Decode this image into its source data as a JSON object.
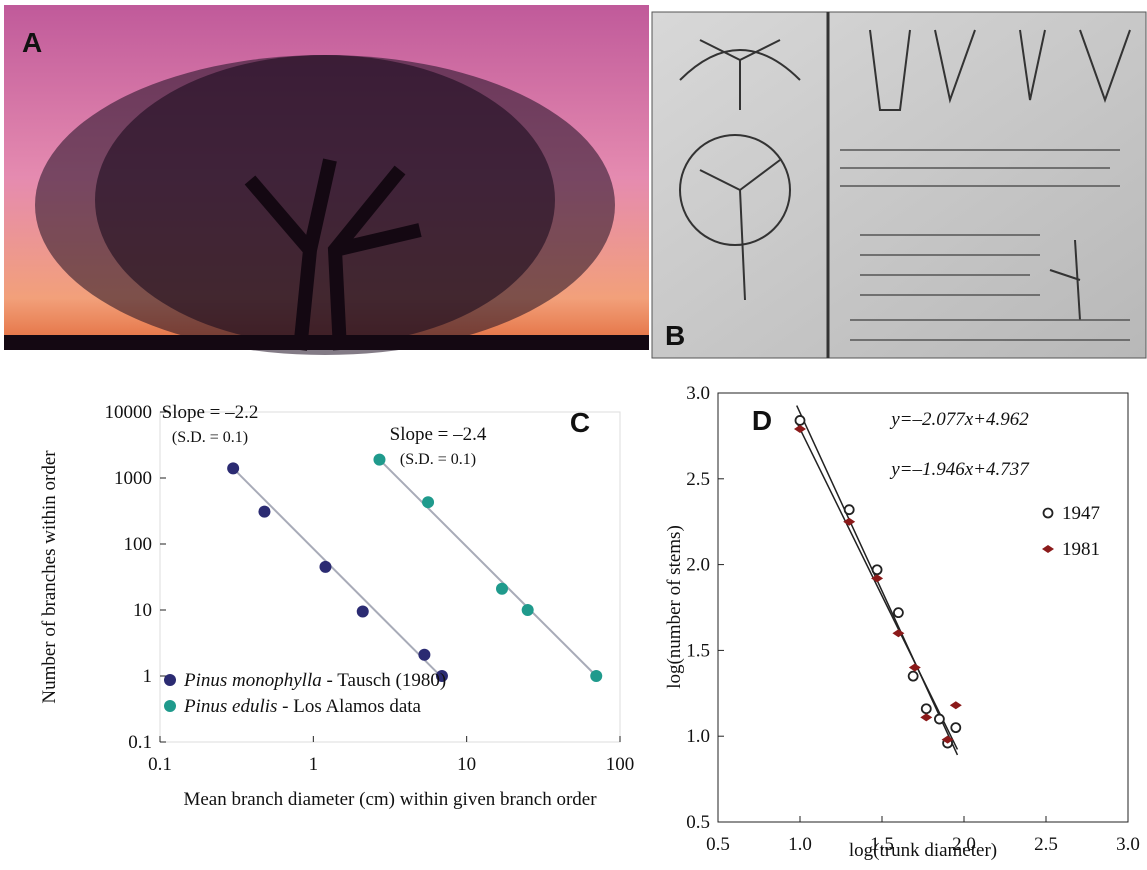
{
  "panels": {
    "a": {
      "label": "A"
    },
    "b": {
      "label": "B"
    }
  },
  "chart_data": [
    {
      "type": "scatter",
      "label": "C",
      "x_label": "Mean branch diameter (cm) within given branch order",
      "y_label": "Number of branches within order",
      "xscale": "log",
      "yscale": "log",
      "xlim": [
        0.1,
        100
      ],
      "ylim": [
        0.1,
        10000
      ],
      "xticks": [
        0.1,
        1,
        10,
        100
      ],
      "yticks": [
        0.1,
        1,
        10,
        100,
        1000,
        10000
      ],
      "legend": "lower left",
      "annotations": [
        {
          "text": "Slope = –2.2",
          "sub": "(S.D. = 0.1)"
        },
        {
          "text": "Slope = –2.4",
          "sub": "(S.D. = 0.1)"
        }
      ],
      "series": [
        {
          "name": "Pinus monophylla - Tausch (1980)",
          "color": "#2b2b72",
          "marker": "filled-circle",
          "x": [
            0.3,
            0.48,
            1.2,
            2.1,
            5.3,
            6.9
          ],
          "values": [
            1400,
            310,
            45,
            9.5,
            2.1,
            1
          ],
          "fit": {
            "x": [
              0.3,
              6.9
            ],
            "y": [
              1400,
              0.95
            ]
          }
        },
        {
          "name": "Pinus edulis - Los Alamos data",
          "color": "#1f9a8c",
          "marker": "filled-circle",
          "x": [
            2.7,
            5.6,
            17,
            25,
            70
          ],
          "values": [
            1900,
            430,
            21,
            10,
            1
          ],
          "fit": {
            "x": [
              2.7,
              70
            ],
            "y": [
              1900,
              1
            ]
          }
        }
      ]
    },
    {
      "type": "scatter",
      "label": "D",
      "x_label": "log(trunk diameter)",
      "y_label": "log(number of stems)",
      "xlim": [
        0.5,
        3.0
      ],
      "ylim": [
        0.5,
        3.0
      ],
      "xticks": [
        0.5,
        {
          "value": 1,
          "label": "1.0"
        },
        1.5,
        {
          "value": 2,
          "label": "2.0"
        },
        2.5,
        {
          "value": 3,
          "label": "3.0"
        }
      ],
      "yticks": [
        0.5,
        {
          "value": 1,
          "label": "1.0"
        },
        1.5,
        {
          "value": 2,
          "label": "2.0"
        },
        2.5,
        {
          "value": 3,
          "label": "3.0"
        }
      ],
      "legend": "right",
      "fits": [
        {
          "label": "y=–2.077x+4.962",
          "slope": -2.077,
          "intercept": 4.962,
          "x": [
            0.98,
            1.96
          ]
        },
        {
          "label": "y=–1.946x+4.737",
          "slope": -1.946,
          "intercept": 4.737,
          "x": [
            0.98,
            1.96
          ]
        }
      ],
      "series": [
        {
          "name": "1947",
          "color": "#222222",
          "marker": "open-circle",
          "x": [
            1.0,
            1.3,
            1.47,
            1.6,
            1.69,
            1.77,
            1.85,
            1.9,
            1.95
          ],
          "values": [
            2.84,
            2.32,
            1.97,
            1.72,
            1.35,
            1.16,
            1.1,
            0.96,
            1.05
          ]
        },
        {
          "name": "1981",
          "color": "#8b1a1a",
          "marker": "diamond",
          "x": [
            1.0,
            1.3,
            1.47,
            1.6,
            1.7,
            1.77,
            1.9,
            1.95
          ],
          "values": [
            2.79,
            2.25,
            1.92,
            1.6,
            1.4,
            1.11,
            0.98,
            1.18
          ]
        }
      ]
    }
  ]
}
